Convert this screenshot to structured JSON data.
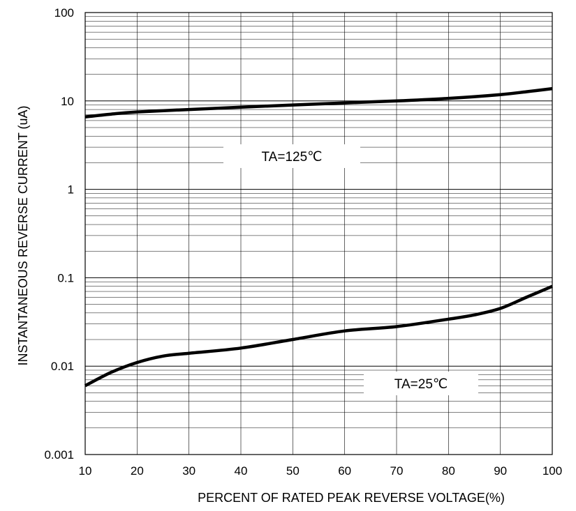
{
  "chart_data": {
    "type": "line",
    "xlabel": "PERCENT OF RATED PEAK REVERSE VOLTAGE(%)",
    "ylabel": "INSTANTANEOUS REVERSE CURRENT (uA)",
    "xlim": [
      10,
      100
    ],
    "ylim": [
      0.001,
      100
    ],
    "yscale": "log",
    "grid": true,
    "x_ticks": [
      "10",
      "20",
      "30",
      "40",
      "50",
      "60",
      "70",
      "80",
      "90",
      "100"
    ],
    "y_ticks": [
      "0.001",
      "0.01",
      "0.1",
      "1",
      "10",
      "100"
    ],
    "series": [
      {
        "name": "TA=125℃",
        "x": [
          10,
          15,
          20,
          30,
          40,
          50,
          60,
          70,
          80,
          90,
          95,
          100
        ],
        "y": [
          6.6,
          7.1,
          7.5,
          8.0,
          8.5,
          9.0,
          9.5,
          10.0,
          10.7,
          11.8,
          12.7,
          13.8
        ]
      },
      {
        "name": "TA=25℃",
        "x": [
          10,
          15,
          20,
          25,
          30,
          40,
          50,
          60,
          70,
          80,
          85,
          90,
          95,
          100
        ],
        "y": [
          0.006,
          0.0085,
          0.011,
          0.013,
          0.014,
          0.016,
          0.02,
          0.025,
          0.028,
          0.034,
          0.038,
          0.045,
          0.06,
          0.08
        ]
      }
    ],
    "annotations": [
      "TA=125℃",
      "TA=25℃"
    ]
  }
}
